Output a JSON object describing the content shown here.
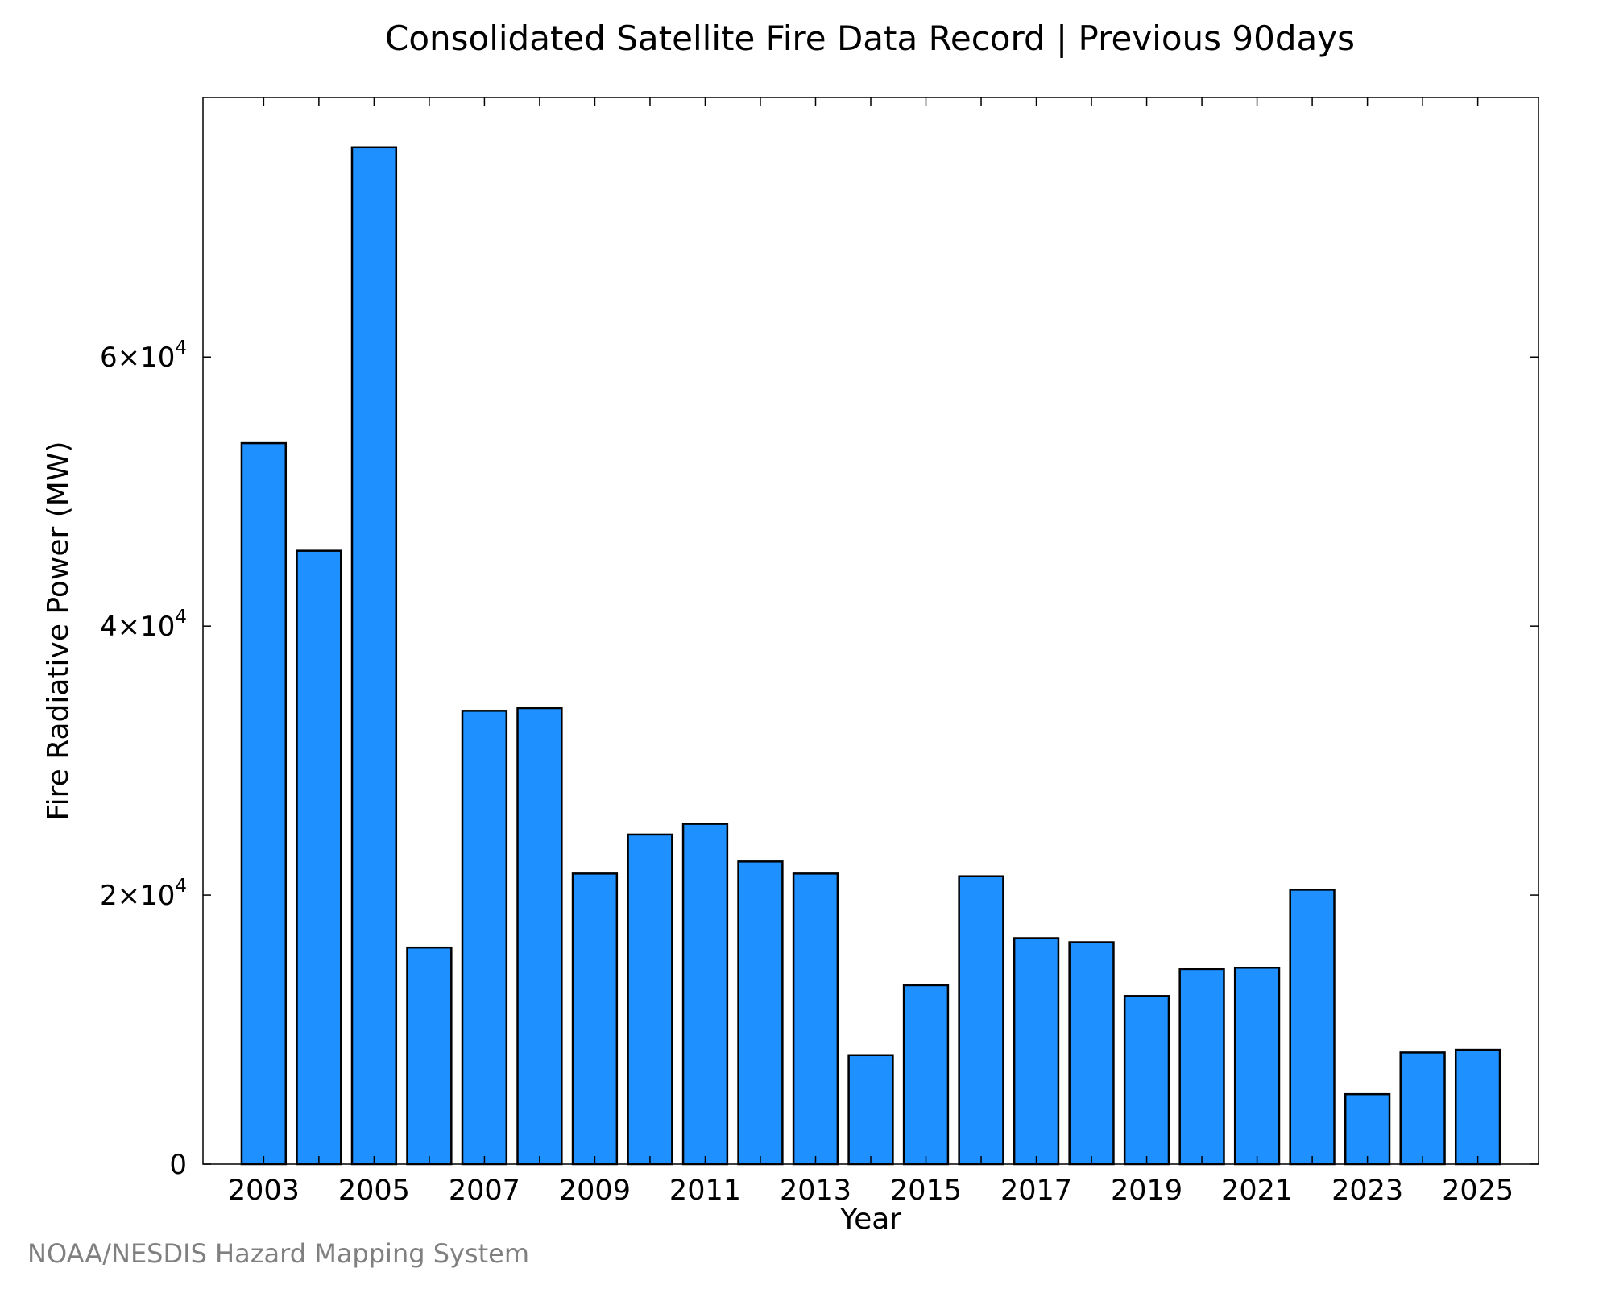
{
  "chart_data": {
    "type": "bar",
    "title": "Consolidated Satellite Fire Data Record | Previous 90days",
    "xlabel": "Year",
    "ylabel": "Fire Radiative Power (MW)",
    "ylim": [
      0,
      79300
    ],
    "xlim": [
      2001.9,
      2026.1
    ],
    "grid": false,
    "bar_color": "#1e90ff",
    "bar_edge_color": "#000000",
    "x_ticks": [
      2003,
      2004,
      2005,
      2006,
      2007,
      2008,
      2009,
      2010,
      2011,
      2012,
      2013,
      2014,
      2015,
      2016,
      2017,
      2018,
      2019,
      2020,
      2021,
      2022,
      2023,
      2024,
      2025
    ],
    "x_tick_labels": [
      "2003",
      "",
      "2005",
      "",
      "2007",
      "",
      "2009",
      "",
      "2011",
      "",
      "2013",
      "",
      "2015",
      "",
      "2017",
      "",
      "2019",
      "",
      "2021",
      "",
      "2023",
      "",
      "2025"
    ],
    "y_ticks": [
      {
        "value": 0,
        "mantissa": "0",
        "exponent": ""
      },
      {
        "value": 20000,
        "mantissa": "2×10",
        "exponent": "4"
      },
      {
        "value": 40000,
        "mantissa": "4×10",
        "exponent": "4"
      },
      {
        "value": 60000,
        "mantissa": "6×10",
        "exponent": "4"
      }
    ],
    "categories": [
      "2003",
      "2004",
      "2005",
      "2006",
      "2007",
      "2008",
      "2009",
      "2010",
      "2011",
      "2012",
      "2013",
      "2014",
      "2015",
      "2016",
      "2017",
      "2018",
      "2019",
      "2020",
      "2021",
      "2022",
      "2023",
      "2024",
      "2025"
    ],
    "values": [
      53600,
      45600,
      75600,
      16100,
      33700,
      33900,
      21600,
      24500,
      25300,
      22500,
      21600,
      8100,
      13300,
      21400,
      16800,
      16500,
      12500,
      14500,
      14600,
      20400,
      5200,
      8300,
      8500
    ]
  },
  "credit": "NOAA/NESDIS Hazard Mapping System"
}
